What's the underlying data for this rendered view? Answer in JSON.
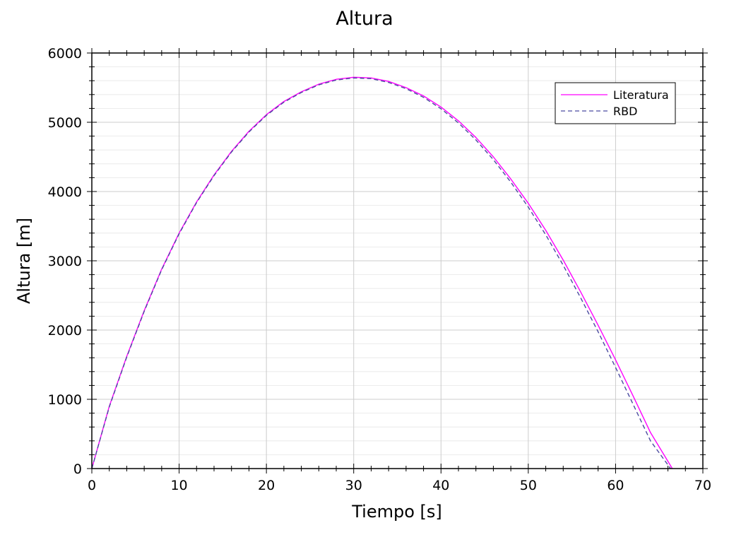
{
  "chart_data": {
    "type": "line",
    "title": "Altura",
    "xlabel": "Tiempo [s]",
    "ylabel": "Altura [m]",
    "xlim": [
      0,
      70
    ],
    "ylim": [
      0,
      6000
    ],
    "xticks": [
      0,
      10,
      20,
      30,
      40,
      50,
      60,
      70
    ],
    "yticks": [
      0,
      1000,
      2000,
      3000,
      4000,
      5000,
      6000
    ],
    "xtick_labels": [
      "0",
      "10",
      "20",
      "30",
      "40",
      "50",
      "60",
      "70"
    ],
    "ytick_labels": [
      "0",
      "1000",
      "2000",
      "3000",
      "4000",
      "5000",
      "6000"
    ],
    "grid": true,
    "minor_grid": true,
    "legend_position": "top-right",
    "series": [
      {
        "name": "Literatura",
        "color": "#ff00ff",
        "style": "solid",
        "x": [
          0,
          2,
          4,
          6,
          8,
          10,
          12,
          14,
          16,
          18,
          20,
          22,
          24,
          26,
          28,
          30,
          32,
          34,
          36,
          38,
          40,
          42,
          44,
          46,
          48,
          50,
          52,
          54,
          56,
          58,
          60,
          62,
          64,
          66.5
        ],
        "y": [
          0,
          900,
          1620,
          2280,
          2880,
          3400,
          3850,
          4240,
          4580,
          4870,
          5110,
          5300,
          5440,
          5550,
          5620,
          5650,
          5640,
          5590,
          5500,
          5380,
          5220,
          5020,
          4780,
          4500,
          4180,
          3830,
          3440,
          3010,
          2550,
          2070,
          1570,
          1050,
          520,
          0
        ]
      },
      {
        "name": "RBD",
        "color": "#4b4ba0",
        "style": "dashed",
        "x": [
          0,
          2,
          4,
          6,
          8,
          10,
          12,
          14,
          16,
          18,
          20,
          22,
          24,
          26,
          28,
          30,
          32,
          34,
          36,
          38,
          40,
          42,
          44,
          46,
          48,
          50,
          52,
          54,
          56,
          58,
          60,
          62,
          64,
          66.3
        ],
        "y": [
          0,
          890,
          1610,
          2270,
          2870,
          3390,
          3840,
          4230,
          4570,
          4860,
          5100,
          5290,
          5430,
          5540,
          5610,
          5640,
          5630,
          5575,
          5485,
          5360,
          5195,
          4990,
          4745,
          4460,
          4135,
          3775,
          3375,
          2935,
          2465,
          1975,
          1460,
          930,
          400,
          0
        ]
      }
    ]
  }
}
